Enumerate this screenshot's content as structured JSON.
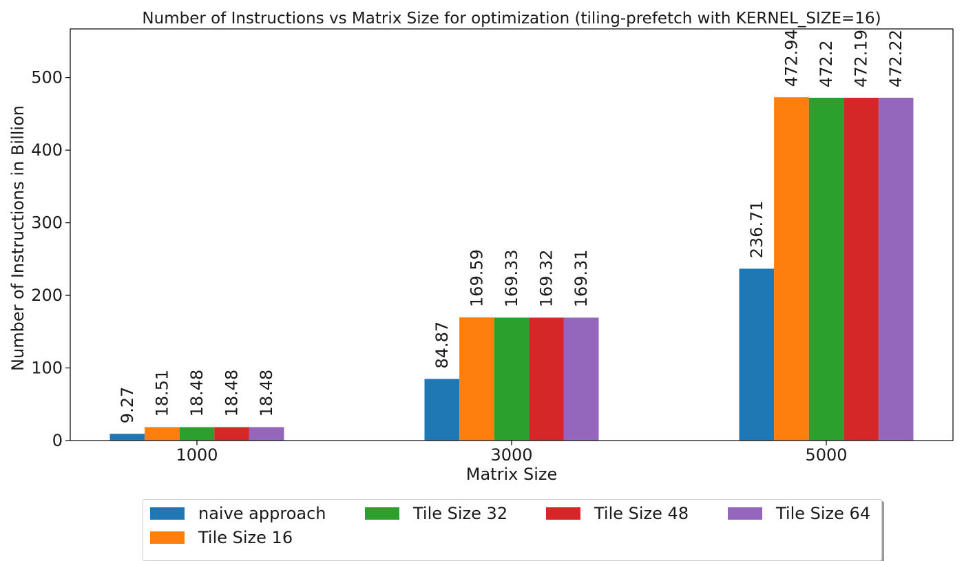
{
  "chart_data": {
    "type": "bar",
    "title": "Number of Instructions vs Matrix Size for optimization (tiling-prefetch with KERNEL_SIZE=16)",
    "xlabel": "Matrix Size",
    "ylabel": "Number of Instructions in Billion",
    "categories": [
      "1000",
      "3000",
      "5000"
    ],
    "ylim": [
      0,
      567
    ],
    "yticks": [
      0,
      100,
      200,
      300,
      400,
      500
    ],
    "grid": false,
    "legend_position": "bottom-center",
    "series": [
      {
        "name": "naive approach",
        "color": "#1f77b4",
        "values": [
          9.27,
          84.87,
          236.71
        ],
        "labels": [
          "9.27",
          "84.87",
          "236.71"
        ]
      },
      {
        "name": "Tile Size 16",
        "color": "#ff7f0e",
        "values": [
          18.51,
          169.59,
          472.94
        ],
        "labels": [
          "18.51",
          "169.59",
          "472.94"
        ]
      },
      {
        "name": "Tile Size 32",
        "color": "#2ca02c",
        "values": [
          18.48,
          169.33,
          472.2
        ],
        "labels": [
          "18.48",
          "169.33",
          "472.2"
        ]
      },
      {
        "name": "Tile Size 48",
        "color": "#d62728",
        "values": [
          18.48,
          169.32,
          472.19
        ],
        "labels": [
          "18.48",
          "169.32",
          "472.19"
        ]
      },
      {
        "name": "Tile Size 64",
        "color": "#9467bd",
        "values": [
          18.48,
          169.31,
          472.22
        ],
        "labels": [
          "18.48",
          "169.31",
          "472.22"
        ]
      }
    ]
  }
}
